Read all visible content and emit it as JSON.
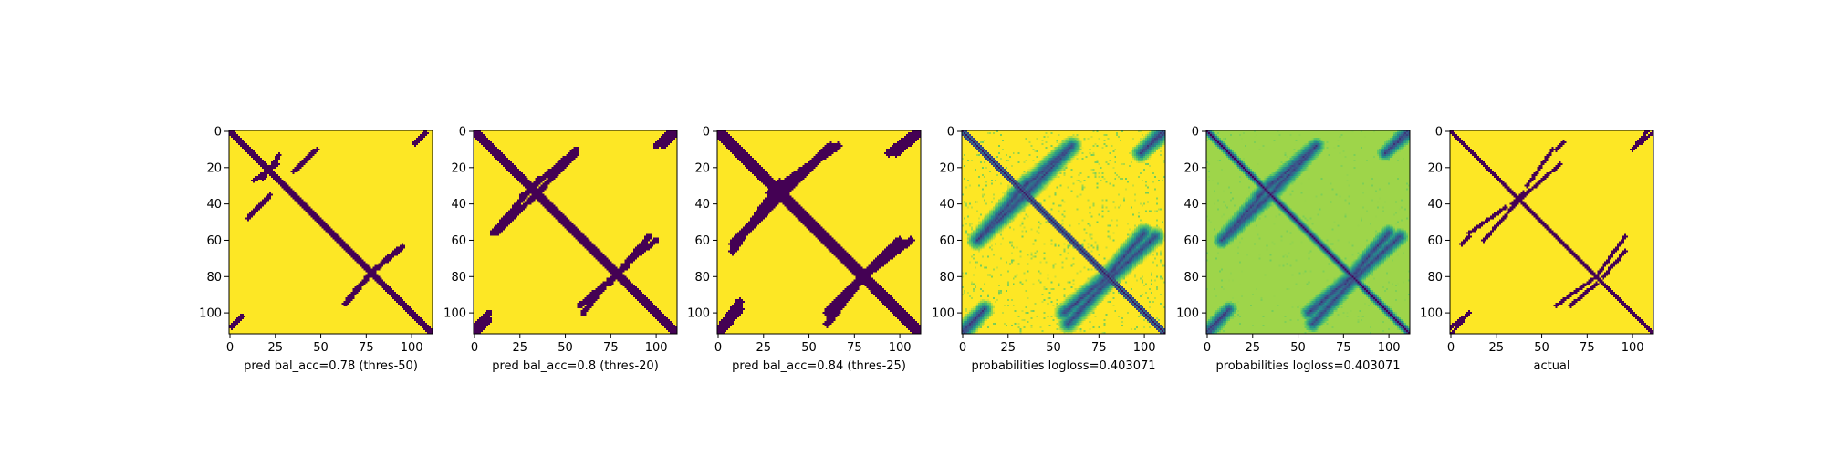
{
  "figure": {
    "colors": {
      "background": "#ffffff",
      "low": "#440154",
      "high": "#fde725",
      "axis": "#000000"
    }
  },
  "chart_data": [
    {
      "type": "heatmap",
      "style": "binary",
      "title": "",
      "xlabel": "pred bal_acc=0.78 (thres-50)",
      "xticks": [
        "0",
        "25",
        "50",
        "75",
        "100"
      ],
      "yticks": [
        "0",
        "20",
        "40",
        "60",
        "80",
        "100"
      ],
      "xlim": [
        0,
        112
      ],
      "ylim": [
        112,
        0
      ],
      "n": 112,
      "diagonal_width": 2.5,
      "features": [
        {
          "from": [
            10,
            48
          ],
          "to": [
            22,
            35
          ],
          "width": 1.4
        },
        {
          "from": [
            18,
            26
          ],
          "to": [
            27,
            13
          ],
          "width": 1.2
        },
        {
          "from": [
            64,
            95
          ],
          "to": [
            80,
            75
          ],
          "width": 1.4
        },
        {
          "from": [
            84,
            72
          ],
          "to": [
            95,
            63
          ],
          "width": 1.2
        },
        {
          "from": [
            1,
            107
          ],
          "to": [
            7,
            102
          ],
          "width": 1.3
        },
        {
          "from": [
            102,
            6
          ],
          "to": [
            108,
            1
          ],
          "width": 1.3
        }
      ]
    },
    {
      "type": "heatmap",
      "style": "binary",
      "title": "",
      "xlabel": "pred bal_acc=0.8 (thres-20)",
      "xticks": [
        "0",
        "25",
        "50",
        "75",
        "100"
      ],
      "yticks": [
        "0",
        "20",
        "40",
        "60",
        "80",
        "100"
      ],
      "xlim": [
        0,
        112
      ],
      "ylim": [
        112,
        0
      ],
      "n": 112,
      "diagonal_width": 3,
      "features": [
        {
          "from": [
            12,
            56
          ],
          "to": [
            36,
            33
          ],
          "width": 1.6
        },
        {
          "from": [
            26,
            36
          ],
          "to": [
            56,
            10
          ],
          "width": 1.6
        },
        {
          "from": [
            58,
            96
          ],
          "to": [
            84,
            74
          ],
          "width": 1.6
        },
        {
          "from": [
            82,
            74
          ],
          "to": [
            100,
            60
          ],
          "width": 1.5
        },
        {
          "from": [
            0,
            108
          ],
          "to": [
            8,
            100
          ],
          "width": 1.6
        },
        {
          "from": [
            104,
            8
          ],
          "to": [
            112,
            0
          ],
          "width": 1.6
        }
      ]
    },
    {
      "type": "heatmap",
      "style": "binary",
      "title": "",
      "xlabel": "pred bal_acc=0.84 (thres-25)",
      "xticks": [
        "0",
        "25",
        "50",
        "75",
        "100"
      ],
      "yticks": [
        "0",
        "20",
        "40",
        "60",
        "80",
        "100"
      ],
      "xlim": [
        0,
        112
      ],
      "ylim": [
        112,
        0
      ],
      "n": 112,
      "diagonal_width": 4,
      "features": [
        {
          "from": [
            8,
            62
          ],
          "to": [
            36,
            34
          ],
          "width": 2.2
        },
        {
          "from": [
            28,
            34
          ],
          "to": [
            66,
            8
          ],
          "width": 2
        },
        {
          "from": [
            60,
            100
          ],
          "to": [
            84,
            76
          ],
          "width": 2.2
        },
        {
          "from": [
            80,
            80
          ],
          "to": [
            106,
            60
          ],
          "width": 2
        },
        {
          "from": [
            0,
            110
          ],
          "to": [
            12,
            94
          ],
          "width": 2.2
        },
        {
          "from": [
            98,
            12
          ],
          "to": [
            112,
            0
          ],
          "width": 2.2
        }
      ]
    },
    {
      "type": "heatmap",
      "style": "probability",
      "title": "",
      "xlabel": "probabilities logloss=0.403071",
      "xticks": [
        "0",
        "25",
        "50",
        "75",
        "100"
      ],
      "yticks": [
        "0",
        "20",
        "40",
        "60",
        "80",
        "100"
      ],
      "xlim": [
        0,
        112
      ],
      "ylim": [
        112,
        0
      ],
      "n": 112,
      "diagonal_width": 2,
      "features": [
        {
          "from": [
            8,
            60
          ],
          "to": [
            36,
            34
          ],
          "width": 2.6
        },
        {
          "from": [
            28,
            36
          ],
          "to": [
            60,
            8
          ],
          "width": 2.6
        },
        {
          "from": [
            56,
            100
          ],
          "to": [
            84,
            76
          ],
          "width": 2.6
        },
        {
          "from": [
            80,
            82
          ],
          "to": [
            106,
            58
          ],
          "width": 2.6
        },
        {
          "from": [
            0,
            110
          ],
          "to": [
            12,
            98
          ],
          "width": 2.4
        },
        {
          "from": [
            98,
            12
          ],
          "to": [
            112,
            0
          ],
          "width": 2.4
        }
      ]
    },
    {
      "type": "heatmap",
      "style": "probability",
      "title": "",
      "xlabel": "probabilities logloss=0.403071",
      "xticks": [
        "0",
        "25",
        "50",
        "75",
        "100"
      ],
      "yticks": [
        "0",
        "20",
        "40",
        "60",
        "80",
        "100"
      ],
      "xlim": [
        0,
        112
      ],
      "ylim": [
        112,
        0
      ],
      "n": 112,
      "diagonal_width": 3.5,
      "features": [
        {
          "from": [
            8,
            60
          ],
          "to": [
            36,
            34
          ],
          "width": 2.6
        },
        {
          "from": [
            28,
            36
          ],
          "to": [
            60,
            8
          ],
          "width": 2.6
        },
        {
          "from": [
            56,
            100
          ],
          "to": [
            84,
            76
          ],
          "width": 2.6
        },
        {
          "from": [
            80,
            82
          ],
          "to": [
            106,
            58
          ],
          "width": 2.6
        },
        {
          "from": [
            0,
            110
          ],
          "to": [
            12,
            98
          ],
          "width": 2.4
        },
        {
          "from": [
            98,
            12
          ],
          "to": [
            112,
            0
          ],
          "width": 2.4
        }
      ]
    },
    {
      "type": "heatmap",
      "style": "binary",
      "title": "",
      "xlabel": "actual",
      "xticks": [
        "0",
        "25",
        "50",
        "75",
        "100"
      ],
      "yticks": [
        "0",
        "20",
        "40",
        "60",
        "80",
        "100"
      ],
      "xlim": [
        0,
        112
      ],
      "ylim": [
        112,
        0
      ],
      "n": 112,
      "diagonal_width": 1.6,
      "features": [
        {
          "from": [
            10,
            56
          ],
          "to": [
            30,
            42
          ],
          "width": 1
        },
        {
          "from": [
            34,
            40
          ],
          "to": [
            42,
            34
          ],
          "width": 1.4
        },
        {
          "from": [
            40,
            36
          ],
          "to": [
            60,
            18
          ],
          "width": 1
        },
        {
          "from": [
            58,
            96
          ],
          "to": [
            80,
            80
          ],
          "width": 1
        },
        {
          "from": [
            84,
            80
          ],
          "to": [
            96,
            66
          ],
          "width": 1
        },
        {
          "from": [
            0,
            108
          ],
          "to": [
            10,
            100
          ],
          "width": 1
        },
        {
          "from": [
            100,
            10
          ],
          "to": [
            112,
            0
          ],
          "width": 1
        },
        {
          "from": [
            58,
            10
          ],
          "to": [
            62,
            6
          ],
          "width": 1
        }
      ]
    }
  ]
}
